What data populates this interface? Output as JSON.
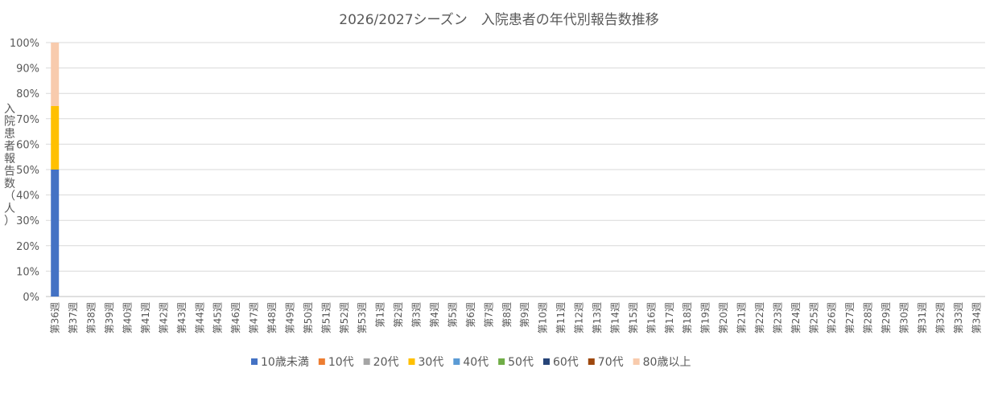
{
  "chart_data": {
    "type": "bar",
    "stacked": true,
    "percent_stacked": true,
    "title": "2026/2027シーズン　入院患者の年代別報告数推移",
    "ylabel": "入院患者報告数（人）",
    "xlabel": "",
    "ylim": [
      0,
      100
    ],
    "y_ticks": [
      "0%",
      "10%",
      "20%",
      "30%",
      "40%",
      "50%",
      "60%",
      "70%",
      "80%",
      "90%",
      "100%"
    ],
    "grid": true,
    "legend_position": "bottom",
    "categories": [
      "第36週",
      "第37週",
      "第38週",
      "第39週",
      "第40週",
      "第41週",
      "第42週",
      "第43週",
      "第44週",
      "第45週",
      "第46週",
      "第47週",
      "第48週",
      "第49週",
      "第50週",
      "第51週",
      "第52週",
      "第53週",
      "第1週",
      "第2週",
      "第3週",
      "第4週",
      "第5週",
      "第6週",
      "第7週",
      "第8週",
      "第9週",
      "第10週",
      "第11週",
      "第12週",
      "第13週",
      "第14週",
      "第15週",
      "第16週",
      "第17週",
      "第18週",
      "第19週",
      "第20週",
      "第21週",
      "第22週",
      "第23週",
      "第24週",
      "第25週",
      "第26週",
      "第27週",
      "第28週",
      "第29週",
      "第30週",
      "第31週",
      "第32週",
      "第33週",
      "第34週"
    ],
    "series": [
      {
        "name": "10歳未満",
        "color": "#4472c4",
        "values": [
          50,
          0,
          0,
          0,
          0,
          0,
          0,
          0,
          0,
          0,
          0,
          0,
          0,
          0,
          0,
          0,
          0,
          0,
          0,
          0,
          0,
          0,
          0,
          0,
          0,
          0,
          0,
          0,
          0,
          0,
          0,
          0,
          0,
          0,
          0,
          0,
          0,
          0,
          0,
          0,
          0,
          0,
          0,
          0,
          0,
          0,
          0,
          0,
          0,
          0,
          0,
          0
        ]
      },
      {
        "name": "10代",
        "color": "#ed7d31",
        "values": [
          0,
          0,
          0,
          0,
          0,
          0,
          0,
          0,
          0,
          0,
          0,
          0,
          0,
          0,
          0,
          0,
          0,
          0,
          0,
          0,
          0,
          0,
          0,
          0,
          0,
          0,
          0,
          0,
          0,
          0,
          0,
          0,
          0,
          0,
          0,
          0,
          0,
          0,
          0,
          0,
          0,
          0,
          0,
          0,
          0,
          0,
          0,
          0,
          0,
          0,
          0,
          0
        ]
      },
      {
        "name": "20代",
        "color": "#a5a5a5",
        "values": [
          0,
          0,
          0,
          0,
          0,
          0,
          0,
          0,
          0,
          0,
          0,
          0,
          0,
          0,
          0,
          0,
          0,
          0,
          0,
          0,
          0,
          0,
          0,
          0,
          0,
          0,
          0,
          0,
          0,
          0,
          0,
          0,
          0,
          0,
          0,
          0,
          0,
          0,
          0,
          0,
          0,
          0,
          0,
          0,
          0,
          0,
          0,
          0,
          0,
          0,
          0,
          0
        ]
      },
      {
        "name": "30代",
        "color": "#ffc000",
        "values": [
          25,
          0,
          0,
          0,
          0,
          0,
          0,
          0,
          0,
          0,
          0,
          0,
          0,
          0,
          0,
          0,
          0,
          0,
          0,
          0,
          0,
          0,
          0,
          0,
          0,
          0,
          0,
          0,
          0,
          0,
          0,
          0,
          0,
          0,
          0,
          0,
          0,
          0,
          0,
          0,
          0,
          0,
          0,
          0,
          0,
          0,
          0,
          0,
          0,
          0,
          0,
          0
        ]
      },
      {
        "name": "40代",
        "color": "#5b9bd5",
        "values": [
          0,
          0,
          0,
          0,
          0,
          0,
          0,
          0,
          0,
          0,
          0,
          0,
          0,
          0,
          0,
          0,
          0,
          0,
          0,
          0,
          0,
          0,
          0,
          0,
          0,
          0,
          0,
          0,
          0,
          0,
          0,
          0,
          0,
          0,
          0,
          0,
          0,
          0,
          0,
          0,
          0,
          0,
          0,
          0,
          0,
          0,
          0,
          0,
          0,
          0,
          0,
          0
        ]
      },
      {
        "name": "50代",
        "color": "#70ad47",
        "values": [
          0,
          0,
          0,
          0,
          0,
          0,
          0,
          0,
          0,
          0,
          0,
          0,
          0,
          0,
          0,
          0,
          0,
          0,
          0,
          0,
          0,
          0,
          0,
          0,
          0,
          0,
          0,
          0,
          0,
          0,
          0,
          0,
          0,
          0,
          0,
          0,
          0,
          0,
          0,
          0,
          0,
          0,
          0,
          0,
          0,
          0,
          0,
          0,
          0,
          0,
          0,
          0
        ]
      },
      {
        "name": "60代",
        "color": "#264478",
        "values": [
          0,
          0,
          0,
          0,
          0,
          0,
          0,
          0,
          0,
          0,
          0,
          0,
          0,
          0,
          0,
          0,
          0,
          0,
          0,
          0,
          0,
          0,
          0,
          0,
          0,
          0,
          0,
          0,
          0,
          0,
          0,
          0,
          0,
          0,
          0,
          0,
          0,
          0,
          0,
          0,
          0,
          0,
          0,
          0,
          0,
          0,
          0,
          0,
          0,
          0,
          0,
          0
        ]
      },
      {
        "name": "70代",
        "color": "#9e480e",
        "values": [
          0,
          0,
          0,
          0,
          0,
          0,
          0,
          0,
          0,
          0,
          0,
          0,
          0,
          0,
          0,
          0,
          0,
          0,
          0,
          0,
          0,
          0,
          0,
          0,
          0,
          0,
          0,
          0,
          0,
          0,
          0,
          0,
          0,
          0,
          0,
          0,
          0,
          0,
          0,
          0,
          0,
          0,
          0,
          0,
          0,
          0,
          0,
          0,
          0,
          0,
          0,
          0
        ]
      },
      {
        "name": "80歳以上",
        "color": "#f8cbad",
        "values": [
          25,
          0,
          0,
          0,
          0,
          0,
          0,
          0,
          0,
          0,
          0,
          0,
          0,
          0,
          0,
          0,
          0,
          0,
          0,
          0,
          0,
          0,
          0,
          0,
          0,
          0,
          0,
          0,
          0,
          0,
          0,
          0,
          0,
          0,
          0,
          0,
          0,
          0,
          0,
          0,
          0,
          0,
          0,
          0,
          0,
          0,
          0,
          0,
          0,
          0,
          0,
          0
        ]
      }
    ]
  }
}
